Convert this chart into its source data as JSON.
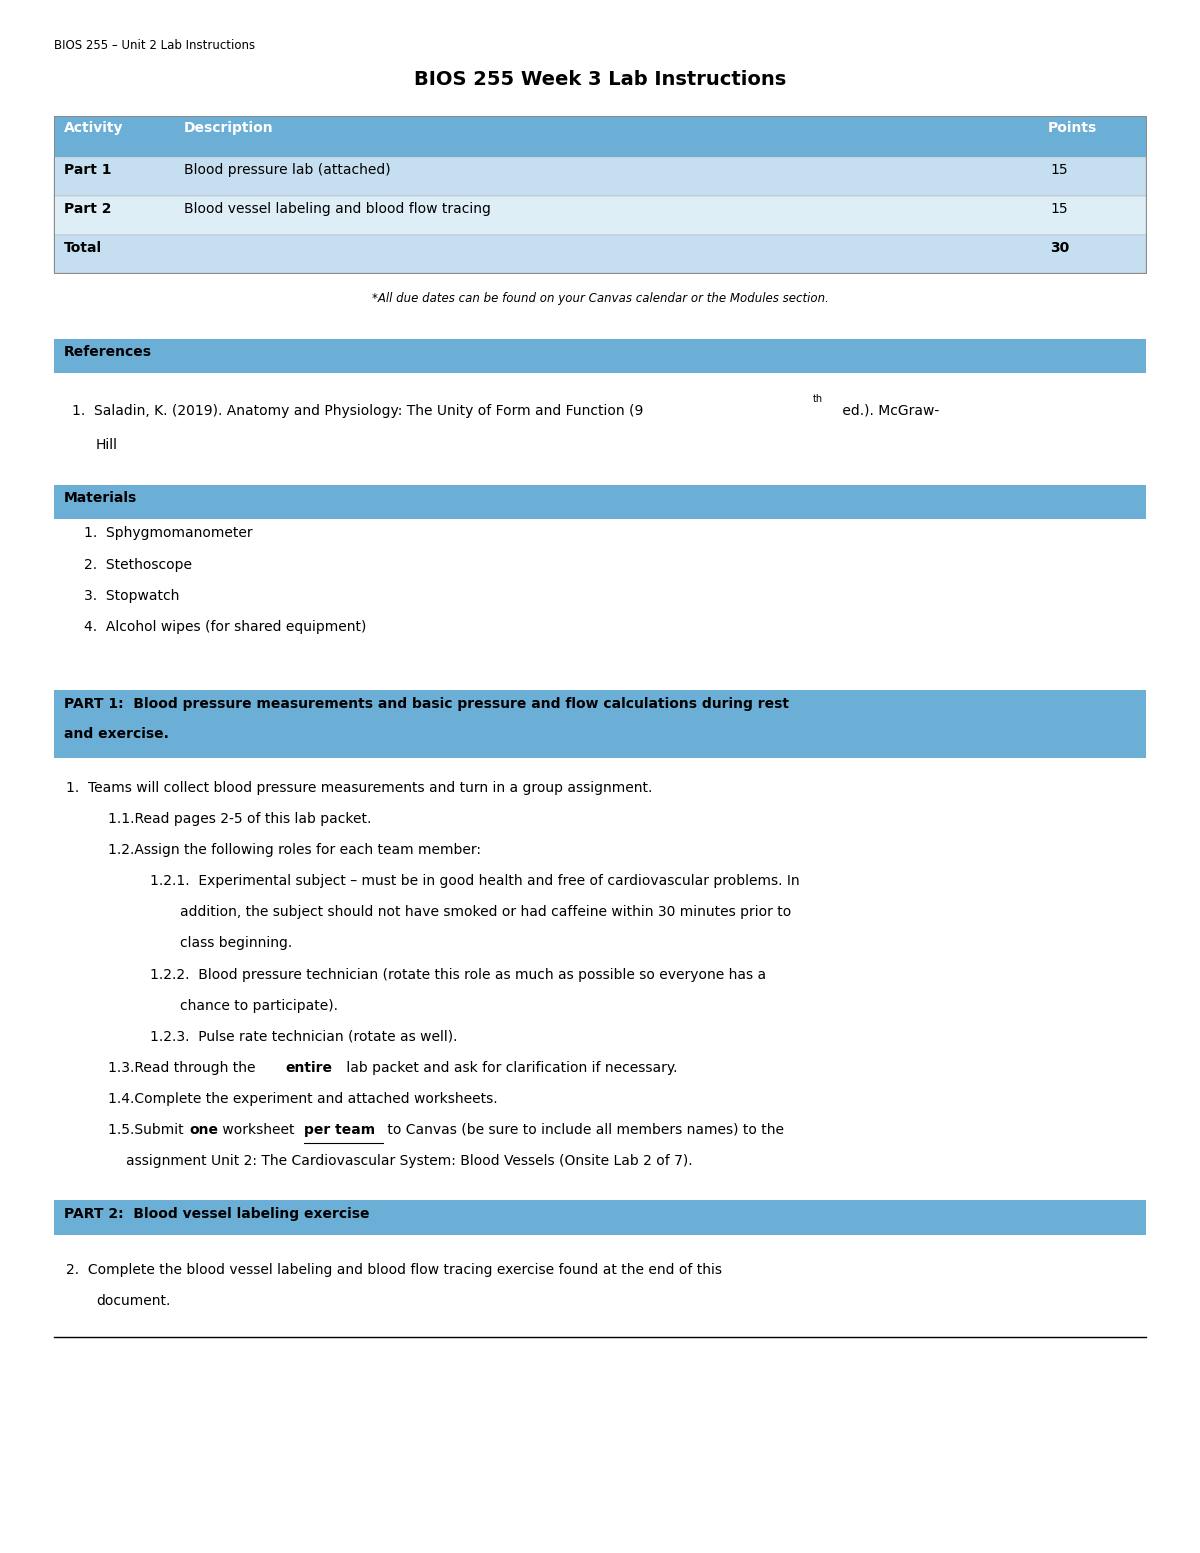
{
  "page_title_small": "BIOS 255 – Unit 2 Lab Instructions",
  "page_title_large": "BIOS 255 Week 3 Lab Instructions",
  "table_header": [
    "Activity",
    "Description",
    "Points"
  ],
  "table_rows": [
    [
      "Part 1",
      "Blood pressure lab (attached)",
      "15"
    ],
    [
      "Part 2",
      "Blood vessel labeling and blood flow tracing",
      "15"
    ],
    [
      "Total",
      "",
      "30"
    ]
  ],
  "table_note": "*All due dates can be found on your Canvas calendar or the Modules section.",
  "header_bg": "#6baed6",
  "header_text": "#ffffff",
  "row_bg_light": "#c6dff0",
  "row_bg_white": "#ddeef7",
  "section_header_bg": "#6baed6",
  "references_header": "References",
  "materials_header": "Materials",
  "materials_items": [
    "Sphygmomanometer",
    "Stethoscope",
    "Stopwatch",
    "Alcohol wipes (for shared equipment)"
  ],
  "part1_header_line1": "PART 1:  Blood pressure measurements and basic pressure and flow calculations during rest",
  "part1_header_line2": "and exercise.",
  "part2_header": "PART 2:  Blood vessel labeling exercise",
  "bg_color": "#ffffff",
  "text_color": "#000000"
}
